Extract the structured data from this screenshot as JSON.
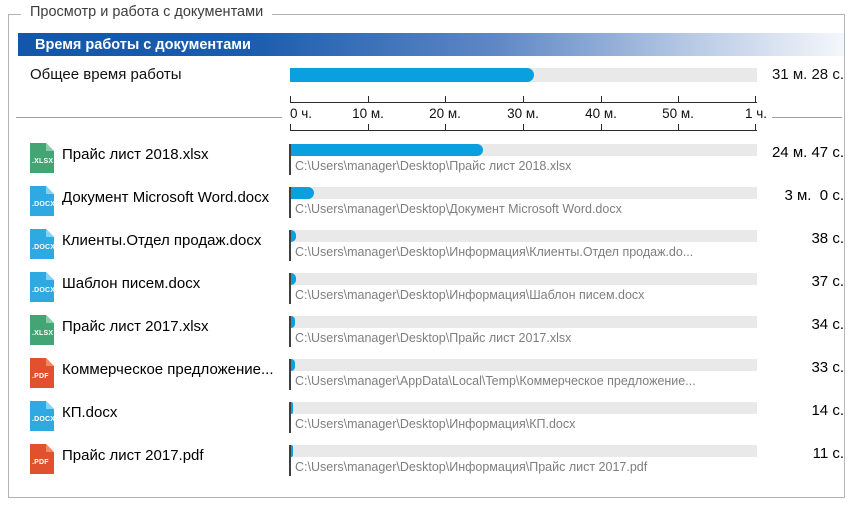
{
  "groupbox": {
    "label": "Просмотр и работа с документами"
  },
  "header": {
    "title": "Время работы с документами"
  },
  "total": {
    "label": "Общее время работы",
    "value": "31 м. 28 с.",
    "seconds": 1888
  },
  "axis": {
    "max_seconds": 3600,
    "tick_labels": [
      "0 ч.",
      "10 м.",
      "20 м.",
      "30 м.",
      "40 м.",
      "50 м.",
      "1 ч."
    ]
  },
  "documents": [
    {
      "name": "Прайс лист 2018.xlsx",
      "type": "xlsx",
      "path": "C:\\Users\\manager\\Desktop\\Прайс лист 2018.xlsx",
      "value": "24 м. 47 с.",
      "seconds": 1487
    },
    {
      "name": "Документ Microsoft Word.docx",
      "type": "docx",
      "path": "C:\\Users\\manager\\Desktop\\Документ Microsoft Word.docx",
      "value": "3 м.  0 с.",
      "seconds": 180
    },
    {
      "name": "Клиенты.Отдел продаж.docx",
      "type": "docx",
      "path": "C:\\Users\\manager\\Desktop\\Информация\\Клиенты.Отдел продаж.do...",
      "value": "38 с.",
      "seconds": 38
    },
    {
      "name": "Шаблон писем.docx",
      "type": "docx",
      "path": "C:\\Users\\manager\\Desktop\\Информация\\Шаблон писем.docx",
      "value": "37 с.",
      "seconds": 37
    },
    {
      "name": "Прайс лист 2017.xlsx",
      "type": "xlsx",
      "path": "C:\\Users\\manager\\Desktop\\Прайс лист 2017.xlsx",
      "value": "34 с.",
      "seconds": 34
    },
    {
      "name": "Коммерческое предложение...",
      "type": "pdf",
      "path": "C:\\Users\\manager\\AppData\\Local\\Temp\\Коммерческое предложение...",
      "value": "33 с.",
      "seconds": 33
    },
    {
      "name": "КП.docx",
      "type": "docx",
      "path": "C:\\Users\\manager\\Desktop\\Информация\\КП.docx",
      "value": "14 с.",
      "seconds": 14
    },
    {
      "name": "Прайс лист 2017.pdf",
      "type": "pdf",
      "path": "C:\\Users\\manager\\Desktop\\Информация\\Прайс лист 2017.pdf",
      "value": "11 с.",
      "seconds": 11
    }
  ],
  "icon_types": {
    "xlsx": {
      "label": ".XLSX",
      "color": "#43a574",
      "fold": "#8ccaa9"
    },
    "docx": {
      "label": ".DOCX",
      "color": "#2fa9e1",
      "fold": "#85d2f2"
    },
    "pdf": {
      "label": ".PDF",
      "color": "#e2512d",
      "fold": "#f08a64"
    }
  },
  "colors": {
    "bar": "#0aa0e0",
    "track": "#e9e9e9",
    "header_from": "#1456a9",
    "header_to": "#f4f7fb",
    "border": "#b3b3b3",
    "path_text": "#7e7e7e",
    "divider": "#a0a0a0"
  }
}
